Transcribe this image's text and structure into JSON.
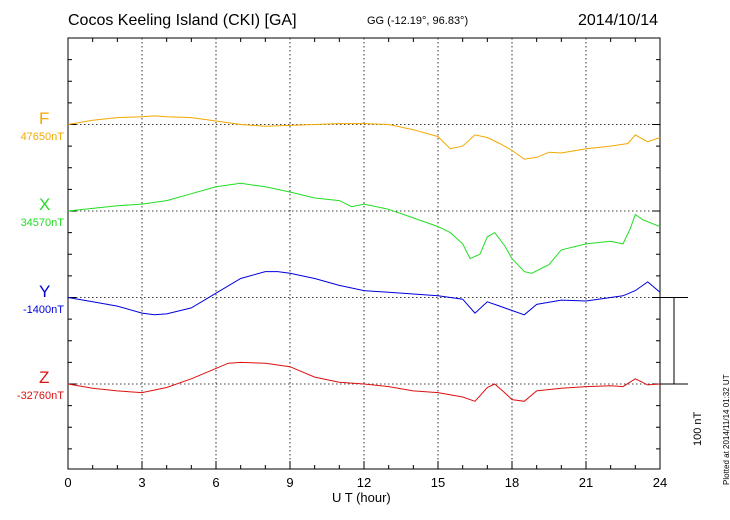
{
  "header": {
    "title": "Cocos Keeling Island (CKI)  [GA]",
    "coords": "GG (-12.19°,  96.83°)",
    "date": "2014/10/14"
  },
  "plotted_note": "Plotted at 2014/11/14 01:32 UT",
  "scale_bar": {
    "label": "100 nT",
    "value_nT": 100
  },
  "chart_data": {
    "type": "line",
    "title": "Cocos Keeling Island (CKI)  [GA]",
    "xlabel": "U T (hour)",
    "xlim": [
      0,
      24
    ],
    "xticks": [
      "0",
      "3",
      "6",
      "9",
      "12",
      "15",
      "18",
      "21",
      "24"
    ],
    "grid": true,
    "series": [
      {
        "name": "F",
        "baseline_label": "47650nT",
        "color": "#f2a900",
        "offset_nT": 300,
        "x": [
          0,
          1,
          2,
          3,
          3.5,
          4,
          5,
          6,
          7,
          8,
          9,
          10,
          11,
          12,
          13,
          14,
          15,
          15.5,
          16,
          16.5,
          17,
          17.5,
          18,
          18.5,
          19,
          19.5,
          20,
          21,
          22,
          22.7,
          23,
          23.5,
          24
        ],
        "y": [
          0,
          5,
          8,
          9,
          10,
          9,
          8,
          4,
          0,
          -2,
          -1,
          0,
          1,
          1,
          0,
          -6,
          -14,
          -28,
          -25,
          -12,
          -15,
          -22,
          -30,
          -40,
          -38,
          -32,
          -33,
          -28,
          -25,
          -22,
          -12,
          -20,
          -15
        ]
      },
      {
        "name": "X",
        "baseline_label": "34570nT",
        "color": "#22dd22",
        "offset_nT": 200,
        "x": [
          0,
          1,
          2,
          3,
          4,
          5,
          6,
          7,
          8,
          9,
          10,
          11,
          11.5,
          12,
          13,
          14,
          15,
          15.5,
          16,
          16.3,
          16.7,
          17,
          17.3,
          17.7,
          18,
          18.5,
          18.8,
          19.5,
          20,
          21,
          22,
          22.5,
          22.8,
          23,
          23.3,
          24
        ],
        "y": [
          0,
          3,
          6,
          8,
          12,
          20,
          28,
          32,
          28,
          22,
          15,
          12,
          5,
          8,
          2,
          -8,
          -18,
          -25,
          -38,
          -55,
          -50,
          -30,
          -25,
          -40,
          -55,
          -70,
          -72,
          -62,
          -45,
          -38,
          -35,
          -38,
          -20,
          -4,
          -10,
          -18
        ]
      },
      {
        "name": "Y",
        "baseline_label": "-1400nT",
        "color": "#0000dd",
        "offset_nT": 100,
        "x": [
          0,
          1,
          2,
          3,
          3.5,
          4,
          5,
          6,
          7,
          8,
          8.5,
          9,
          10,
          11,
          12,
          13,
          14,
          15,
          16,
          16.5,
          17,
          17.5,
          18,
          18.5,
          19,
          20,
          21,
          22,
          22.5,
          23,
          23.5,
          24
        ],
        "y": [
          0,
          -5,
          -10,
          -18,
          -20,
          -19,
          -12,
          5,
          22,
          30,
          30,
          28,
          22,
          14,
          8,
          6,
          4,
          2,
          -2,
          -18,
          -5,
          -10,
          -15,
          -20,
          -8,
          -3,
          -4,
          0,
          2,
          8,
          18,
          6
        ]
      },
      {
        "name": "Z",
        "baseline_label": "-32760nT",
        "color": "#dd1111",
        "offset_nT": 0,
        "x": [
          0,
          1,
          2,
          3,
          4,
          5,
          6,
          6.5,
          7,
          8,
          9,
          10,
          11,
          12,
          13,
          14,
          15,
          16,
          16.5,
          17,
          17.3,
          17.7,
          18,
          18.5,
          19,
          20,
          21,
          22,
          22.5,
          23,
          23.5,
          24
        ],
        "y": [
          0,
          -5,
          -8,
          -10,
          -4,
          6,
          18,
          24,
          25,
          24,
          20,
          8,
          2,
          0,
          -3,
          -8,
          -10,
          -15,
          -20,
          -4,
          0,
          -10,
          -18,
          -20,
          -8,
          -5,
          -3,
          -2,
          -3,
          6,
          -1,
          0
        ]
      }
    ]
  }
}
